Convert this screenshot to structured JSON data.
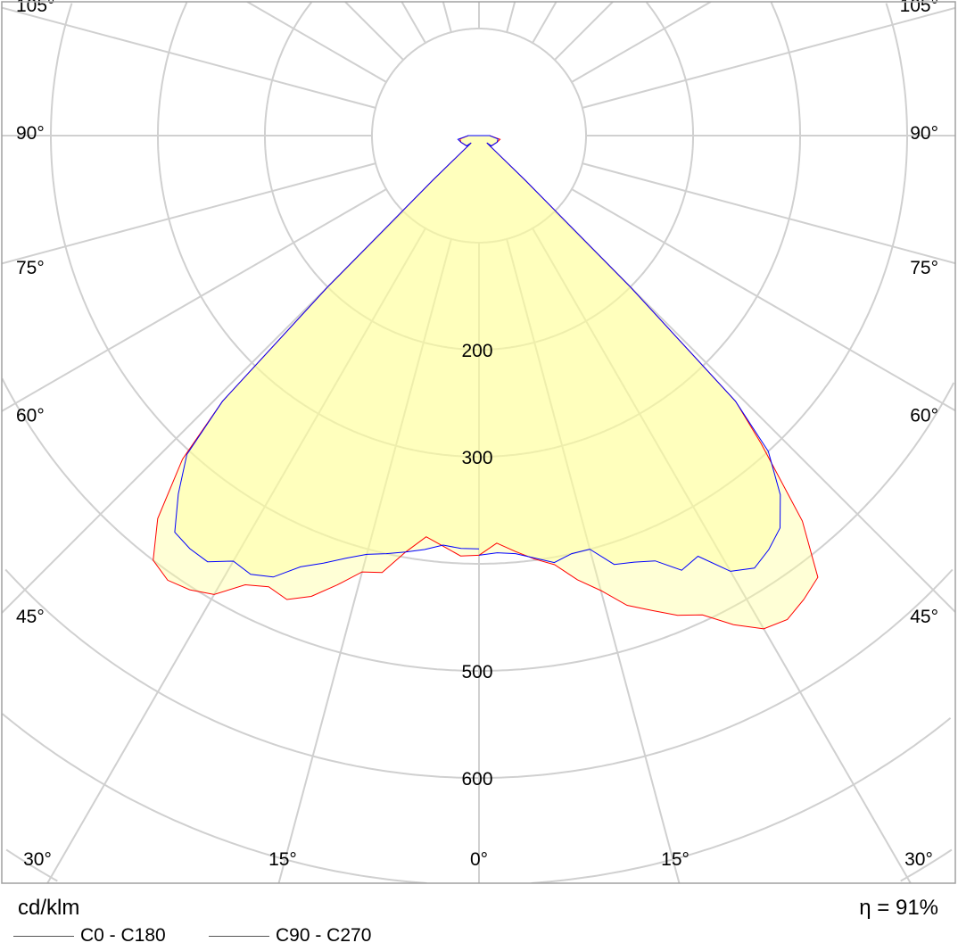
{
  "chart_data": {
    "type": "polar",
    "title": "",
    "unit_label": "cd/klm",
    "efficiency_label": "η = 91%",
    "radial_ticks": [
      100,
      200,
      300,
      400,
      500,
      600,
      700,
      800
    ],
    "radial_tick_labels": [
      "200",
      "300",
      "500",
      "600"
    ],
    "radial_labeled_values": [
      200,
      300,
      500,
      600
    ],
    "angle_step_deg": 15,
    "angle_labels_side": [
      "105°",
      "90°",
      "75°",
      "60°",
      "45°"
    ],
    "angle_labels_side_values": [
      105,
      90,
      75,
      60,
      45
    ],
    "angle_labels_bottom": [
      "30°",
      "15°",
      "0°",
      "15°",
      "30°"
    ],
    "angle_labels_bottom_values": [
      -30,
      -15,
      0,
      15,
      30
    ],
    "grid": true,
    "legend_position": "bottom-left",
    "angles": [
      0,
      2.5,
      5,
      7.5,
      10,
      12.5,
      15,
      17.5,
      20,
      22.5,
      25,
      27.5,
      30,
      32.5,
      35,
      37.5,
      40,
      42.5,
      44,
      45,
      46,
      47,
      50,
      70,
      80,
      90,
      100,
      180
    ],
    "series": [
      {
        "name": "C0 - C180",
        "color": "#ff0000",
        "right_plane": "C0",
        "right": [
          392,
          381,
          390,
          399,
          407,
          425,
          440,
          460,
          472,
          485,
          494,
          515,
          532,
          536,
          529,
          520,
          470,
          390,
          345,
          200,
          60,
          10,
          15,
          18,
          20,
          10,
          0,
          0
        ],
        "left_plane": "C180",
        "left": [
          392,
          393,
          385,
          378,
          395,
          418,
          422,
          440,
          458,
          469,
          465,
          473,
          495,
          503,
          507,
          500,
          467,
          410,
          345,
          200,
          60,
          10,
          15,
          18,
          18,
          10,
          0,
          0
        ]
      },
      {
        "name": "C90 - C270",
        "color": "#0000ff",
        "right_plane": "C90",
        "right": [
          392,
          390,
          392,
          398,
          405,
          400,
          400,
          420,
          424,
          430,
          448,
          443,
          470,
          479,
          472,
          462,
          438,
          400,
          345,
          200,
          60,
          10,
          15,
          18,
          18,
          10,
          0,
          0
        ],
        "left_plane": "C270",
        "left": [
          386,
          386,
          384,
          390,
          395,
          400,
          405,
          414,
          425,
          436,
          455,
          462,
          459,
          472,
          471,
          467,
          437,
          404,
          345,
          200,
          60,
          10,
          15,
          18,
          20,
          10,
          0,
          0
        ]
      }
    ]
  },
  "colors": {
    "grid": "#d0d0d0",
    "fill": "#ffff99",
    "frame": "#a0a0a0"
  }
}
